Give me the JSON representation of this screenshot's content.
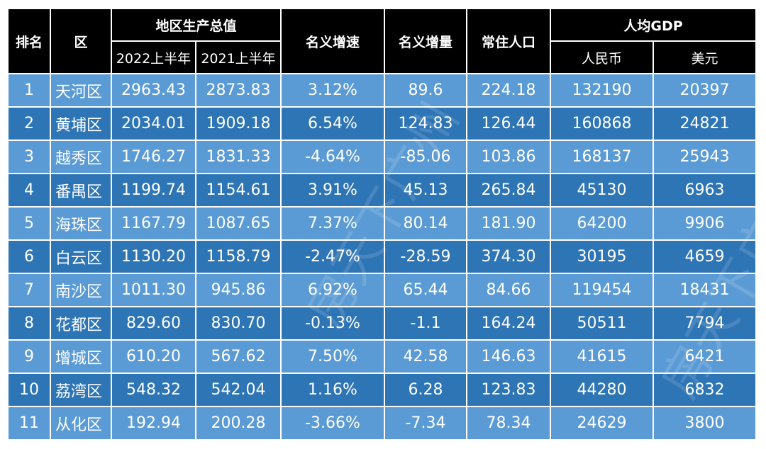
{
  "headers": {
    "rank": "排名",
    "district": "区",
    "gdp": "地区生产总值",
    "gdp_2022": "2022上半年",
    "gdp_2021": "2021上半年",
    "growth_rate": "名义增速",
    "growth_amount": "名义增量",
    "population": "常住人口",
    "per_capita": "人均GDP",
    "rmb": "人民币",
    "usd": "美元"
  },
  "rows": [
    [
      "1",
      "天河区",
      "2963.43",
      "2873.83",
      "3.12%",
      "89.6",
      "224.18",
      "132190",
      "20397"
    ],
    [
      "2",
      "黄埔区",
      "2034.01",
      "1909.18",
      "6.54%",
      "124.83",
      "126.44",
      "160868",
      "24821"
    ],
    [
      "3",
      "越秀区",
      "1746.27",
      "1831.33",
      "-4.64%",
      "-85.06",
      "103.86",
      "168137",
      "25943"
    ],
    [
      "4",
      "番禺区",
      "1199.74",
      "1154.61",
      "3.91%",
      "45.13",
      "265.84",
      "45130",
      "6963"
    ],
    [
      "5",
      "海珠区",
      "1167.79",
      "1087.65",
      "7.37%",
      "80.14",
      "181.90",
      "64200",
      "9906"
    ],
    [
      "6",
      "白云区",
      "1130.20",
      "1158.79",
      "-2.47%",
      "-28.59",
      "374.30",
      "30195",
      "4659"
    ],
    [
      "7",
      "南沙区",
      "1011.30",
      "945.86",
      "6.92%",
      "65.44",
      "84.66",
      "119454",
      "18431"
    ],
    [
      "8",
      "花都区",
      "829.60",
      "830.70",
      "-0.13%",
      "-1.1",
      "164.24",
      "50511",
      "7794"
    ],
    [
      "9",
      "增城区",
      "610.20",
      "567.62",
      "7.50%",
      "42.58",
      "146.63",
      "41615",
      "6421"
    ],
    [
      "10",
      "荔湾区",
      "548.32",
      "542.04",
      "1.16%",
      "6.28",
      "123.83",
      "44280",
      "6832"
    ],
    [
      "11",
      "从化区",
      "192.94",
      "200.28",
      "-3.66%",
      "-7.34",
      "78.34",
      "24629",
      "3800"
    ]
  ],
  "watermark": "房天下广州",
  "colors": {
    "header": "#000000",
    "row_light": "#5b9bd5",
    "row_dark": "#2e75b6"
  }
}
